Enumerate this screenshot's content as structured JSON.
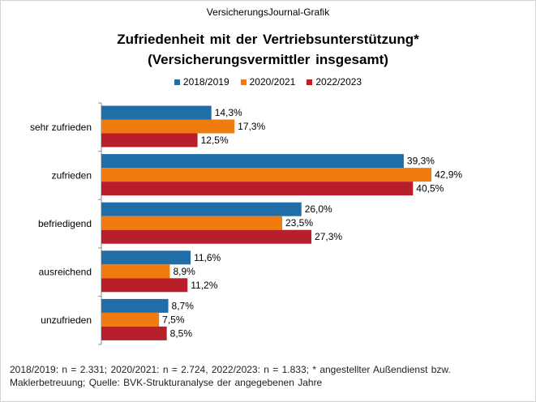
{
  "source_label": "VersicherungsJournal-Grafik",
  "title_line1": "Zufriedenheit mit der Vertriebsunterstützung*",
  "title_line2": "(Versicherungsvermittler insgesamt)",
  "footnote_line1": "2018/2019: n = 2.331; 2020/2021: n = 2.724, 2022/2023: n = 1.833; * angestellter Außendienst bzw.",
  "footnote_line2": "Maklerbetreuung; Quelle: BVK-Strukturanalyse der angegebenen Jahre",
  "chart_data": {
    "type": "bar",
    "orientation": "horizontal",
    "categories": [
      "sehr zufrieden",
      "zufrieden",
      "befriedigend",
      "ausreichend",
      "unzufrieden"
    ],
    "series": [
      {
        "name": "2018/2019",
        "color": "#1f6ea8",
        "values": [
          14.3,
          39.3,
          26.0,
          11.6,
          8.7
        ],
        "labels": [
          "14,3%",
          "39,3%",
          "26,0%",
          "11,6%",
          "8,7%"
        ]
      },
      {
        "name": "2020/2021",
        "color": "#f07b0f",
        "values": [
          17.3,
          42.9,
          23.5,
          8.9,
          7.5
        ],
        "labels": [
          "17,3%",
          "42,9%",
          "23,5%",
          "8,9%",
          "7,5%"
        ]
      },
      {
        "name": "2022/2023",
        "color": "#b81f2b",
        "values": [
          12.5,
          40.5,
          27.3,
          11.2,
          8.5
        ],
        "labels": [
          "12,5%",
          "40,5%",
          "27,3%",
          "11,2%",
          "8,5%"
        ]
      }
    ],
    "xlim": [
      0,
      45
    ],
    "grid": false,
    "legend_position": "top"
  }
}
